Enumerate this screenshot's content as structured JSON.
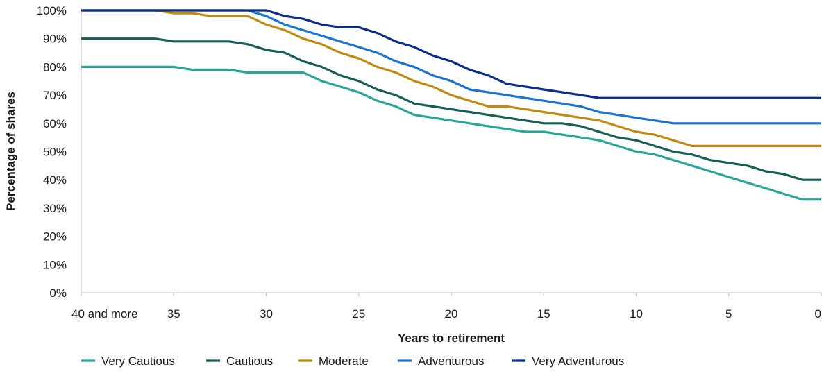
{
  "chart_data": {
    "type": "line",
    "title": "",
    "xlabel": "Years to retirement",
    "ylabel": "Percentage of shares",
    "xlim": [
      40,
      0
    ],
    "ylim": [
      0,
      100
    ],
    "x_ticks": [
      {
        "value": 40,
        "label": "40 and more"
      },
      {
        "value": 35,
        "label": "35"
      },
      {
        "value": 30,
        "label": "30"
      },
      {
        "value": 25,
        "label": "25"
      },
      {
        "value": 20,
        "label": "20"
      },
      {
        "value": 15,
        "label": "15"
      },
      {
        "value": 10,
        "label": "10"
      },
      {
        "value": 5,
        "label": "5"
      },
      {
        "value": 0,
        "label": "0"
      }
    ],
    "y_ticks": [
      {
        "value": 0,
        "label": "0%"
      },
      {
        "value": 10,
        "label": "10%"
      },
      {
        "value": 20,
        "label": "20%"
      },
      {
        "value": 30,
        "label": "30%"
      },
      {
        "value": 40,
        "label": "40%"
      },
      {
        "value": 50,
        "label": "50%"
      },
      {
        "value": 60,
        "label": "60%"
      },
      {
        "value": 70,
        "label": "70%"
      },
      {
        "value": 80,
        "label": "80%"
      },
      {
        "value": 90,
        "label": "90%"
      },
      {
        "value": 100,
        "label": "100%"
      }
    ],
    "grid": false,
    "legend_position": "bottom",
    "x": [
      40,
      39,
      38,
      37,
      36,
      35,
      34,
      33,
      32,
      31,
      30,
      29,
      28,
      27,
      26,
      25,
      24,
      23,
      22,
      21,
      20,
      19,
      18,
      17,
      16,
      15,
      14,
      13,
      12,
      11,
      10,
      9,
      8,
      7,
      6,
      5,
      4,
      3,
      2,
      1,
      0
    ],
    "series": [
      {
        "name": "Very Cautious",
        "color": "#2aa59a",
        "values": [
          80,
          80,
          80,
          80,
          80,
          80,
          79,
          79,
          79,
          78,
          78,
          78,
          78,
          75,
          73,
          71,
          68,
          66,
          63,
          62,
          61,
          60,
          59,
          58,
          57,
          57,
          56,
          55,
          54,
          52,
          50,
          49,
          47,
          45,
          43,
          41,
          39,
          37,
          35,
          33,
          33
        ]
      },
      {
        "name": "Cautious",
        "color": "#175e54",
        "values": [
          90,
          90,
          90,
          90,
          90,
          89,
          89,
          89,
          89,
          88,
          86,
          85,
          82,
          80,
          77,
          75,
          72,
          70,
          67,
          66,
          65,
          64,
          63,
          62,
          61,
          60,
          60,
          59,
          57,
          55,
          54,
          52,
          50,
          49,
          47,
          46,
          45,
          43,
          42,
          40,
          40
        ]
      },
      {
        "name": "Moderate",
        "color": "#c08a12",
        "values": [
          100,
          100,
          100,
          100,
          100,
          99,
          99,
          98,
          98,
          98,
          95,
          93,
          90,
          88,
          85,
          83,
          80,
          78,
          75,
          73,
          70,
          68,
          66,
          66,
          65,
          64,
          63,
          62,
          61,
          59,
          57,
          56,
          54,
          52,
          52,
          52,
          52,
          52,
          52,
          52,
          52
        ]
      },
      {
        "name": "Adventurous",
        "color": "#1a74d2",
        "values": [
          100,
          100,
          100,
          100,
          100,
          100,
          100,
          100,
          100,
          100,
          98,
          95,
          93,
          91,
          89,
          87,
          85,
          82,
          80,
          77,
          75,
          72,
          71,
          70,
          69,
          68,
          67,
          66,
          64,
          63,
          62,
          61,
          60,
          60,
          60,
          60,
          60,
          60,
          60,
          60,
          60
        ]
      },
      {
        "name": "Very Adventurous",
        "color": "#0d2c8c",
        "values": [
          100,
          100,
          100,
          100,
          100,
          100,
          100,
          100,
          100,
          100,
          100,
          98,
          97,
          95,
          94,
          94,
          92,
          89,
          87,
          84,
          82,
          79,
          77,
          74,
          73,
          72,
          71,
          70,
          69,
          69,
          69,
          69,
          69,
          69,
          69,
          69,
          69,
          69,
          69,
          69,
          69
        ]
      }
    ]
  }
}
